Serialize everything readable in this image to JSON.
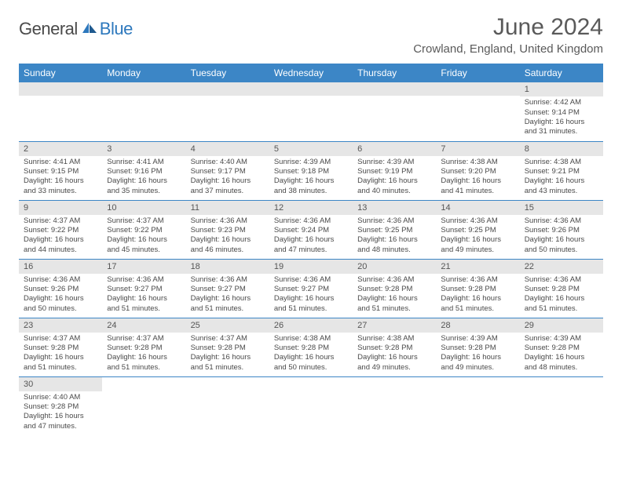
{
  "brand": {
    "part1": "General",
    "part2": "Blue"
  },
  "title": "June 2024",
  "location": "Crowland, England, United Kingdom",
  "colors": {
    "header_bg": "#3c86c6",
    "header_text": "#ffffff",
    "daynum_bg": "#e6e6e6",
    "row_border": "#3c86c6",
    "body_text": "#4a4a4a",
    "title_text": "#5a5a5a",
    "logo_gray": "#4a4a4a",
    "logo_blue": "#2d78bd"
  },
  "weekdays": [
    "Sunday",
    "Monday",
    "Tuesday",
    "Wednesday",
    "Thursday",
    "Friday",
    "Saturday"
  ],
  "weeks": [
    [
      null,
      null,
      null,
      null,
      null,
      null,
      {
        "n": "1",
        "sr": "Sunrise: 4:42 AM",
        "ss": "Sunset: 9:14 PM",
        "dl1": "Daylight: 16 hours",
        "dl2": "and 31 minutes."
      }
    ],
    [
      {
        "n": "2",
        "sr": "Sunrise: 4:41 AM",
        "ss": "Sunset: 9:15 PM",
        "dl1": "Daylight: 16 hours",
        "dl2": "and 33 minutes."
      },
      {
        "n": "3",
        "sr": "Sunrise: 4:41 AM",
        "ss": "Sunset: 9:16 PM",
        "dl1": "Daylight: 16 hours",
        "dl2": "and 35 minutes."
      },
      {
        "n": "4",
        "sr": "Sunrise: 4:40 AM",
        "ss": "Sunset: 9:17 PM",
        "dl1": "Daylight: 16 hours",
        "dl2": "and 37 minutes."
      },
      {
        "n": "5",
        "sr": "Sunrise: 4:39 AM",
        "ss": "Sunset: 9:18 PM",
        "dl1": "Daylight: 16 hours",
        "dl2": "and 38 minutes."
      },
      {
        "n": "6",
        "sr": "Sunrise: 4:39 AM",
        "ss": "Sunset: 9:19 PM",
        "dl1": "Daylight: 16 hours",
        "dl2": "and 40 minutes."
      },
      {
        "n": "7",
        "sr": "Sunrise: 4:38 AM",
        "ss": "Sunset: 9:20 PM",
        "dl1": "Daylight: 16 hours",
        "dl2": "and 41 minutes."
      },
      {
        "n": "8",
        "sr": "Sunrise: 4:38 AM",
        "ss": "Sunset: 9:21 PM",
        "dl1": "Daylight: 16 hours",
        "dl2": "and 43 minutes."
      }
    ],
    [
      {
        "n": "9",
        "sr": "Sunrise: 4:37 AM",
        "ss": "Sunset: 9:22 PM",
        "dl1": "Daylight: 16 hours",
        "dl2": "and 44 minutes."
      },
      {
        "n": "10",
        "sr": "Sunrise: 4:37 AM",
        "ss": "Sunset: 9:22 PM",
        "dl1": "Daylight: 16 hours",
        "dl2": "and 45 minutes."
      },
      {
        "n": "11",
        "sr": "Sunrise: 4:36 AM",
        "ss": "Sunset: 9:23 PM",
        "dl1": "Daylight: 16 hours",
        "dl2": "and 46 minutes."
      },
      {
        "n": "12",
        "sr": "Sunrise: 4:36 AM",
        "ss": "Sunset: 9:24 PM",
        "dl1": "Daylight: 16 hours",
        "dl2": "and 47 minutes."
      },
      {
        "n": "13",
        "sr": "Sunrise: 4:36 AM",
        "ss": "Sunset: 9:25 PM",
        "dl1": "Daylight: 16 hours",
        "dl2": "and 48 minutes."
      },
      {
        "n": "14",
        "sr": "Sunrise: 4:36 AM",
        "ss": "Sunset: 9:25 PM",
        "dl1": "Daylight: 16 hours",
        "dl2": "and 49 minutes."
      },
      {
        "n": "15",
        "sr": "Sunrise: 4:36 AM",
        "ss": "Sunset: 9:26 PM",
        "dl1": "Daylight: 16 hours",
        "dl2": "and 50 minutes."
      }
    ],
    [
      {
        "n": "16",
        "sr": "Sunrise: 4:36 AM",
        "ss": "Sunset: 9:26 PM",
        "dl1": "Daylight: 16 hours",
        "dl2": "and 50 minutes."
      },
      {
        "n": "17",
        "sr": "Sunrise: 4:36 AM",
        "ss": "Sunset: 9:27 PM",
        "dl1": "Daylight: 16 hours",
        "dl2": "and 51 minutes."
      },
      {
        "n": "18",
        "sr": "Sunrise: 4:36 AM",
        "ss": "Sunset: 9:27 PM",
        "dl1": "Daylight: 16 hours",
        "dl2": "and 51 minutes."
      },
      {
        "n": "19",
        "sr": "Sunrise: 4:36 AM",
        "ss": "Sunset: 9:27 PM",
        "dl1": "Daylight: 16 hours",
        "dl2": "and 51 minutes."
      },
      {
        "n": "20",
        "sr": "Sunrise: 4:36 AM",
        "ss": "Sunset: 9:28 PM",
        "dl1": "Daylight: 16 hours",
        "dl2": "and 51 minutes."
      },
      {
        "n": "21",
        "sr": "Sunrise: 4:36 AM",
        "ss": "Sunset: 9:28 PM",
        "dl1": "Daylight: 16 hours",
        "dl2": "and 51 minutes."
      },
      {
        "n": "22",
        "sr": "Sunrise: 4:36 AM",
        "ss": "Sunset: 9:28 PM",
        "dl1": "Daylight: 16 hours",
        "dl2": "and 51 minutes."
      }
    ],
    [
      {
        "n": "23",
        "sr": "Sunrise: 4:37 AM",
        "ss": "Sunset: 9:28 PM",
        "dl1": "Daylight: 16 hours",
        "dl2": "and 51 minutes."
      },
      {
        "n": "24",
        "sr": "Sunrise: 4:37 AM",
        "ss": "Sunset: 9:28 PM",
        "dl1": "Daylight: 16 hours",
        "dl2": "and 51 minutes."
      },
      {
        "n": "25",
        "sr": "Sunrise: 4:37 AM",
        "ss": "Sunset: 9:28 PM",
        "dl1": "Daylight: 16 hours",
        "dl2": "and 51 minutes."
      },
      {
        "n": "26",
        "sr": "Sunrise: 4:38 AM",
        "ss": "Sunset: 9:28 PM",
        "dl1": "Daylight: 16 hours",
        "dl2": "and 50 minutes."
      },
      {
        "n": "27",
        "sr": "Sunrise: 4:38 AM",
        "ss": "Sunset: 9:28 PM",
        "dl1": "Daylight: 16 hours",
        "dl2": "and 49 minutes."
      },
      {
        "n": "28",
        "sr": "Sunrise: 4:39 AM",
        "ss": "Sunset: 9:28 PM",
        "dl1": "Daylight: 16 hours",
        "dl2": "and 49 minutes."
      },
      {
        "n": "29",
        "sr": "Sunrise: 4:39 AM",
        "ss": "Sunset: 9:28 PM",
        "dl1": "Daylight: 16 hours",
        "dl2": "and 48 minutes."
      }
    ],
    [
      {
        "n": "30",
        "sr": "Sunrise: 4:40 AM",
        "ss": "Sunset: 9:28 PM",
        "dl1": "Daylight: 16 hours",
        "dl2": "and 47 minutes."
      },
      null,
      null,
      null,
      null,
      null,
      null
    ]
  ]
}
